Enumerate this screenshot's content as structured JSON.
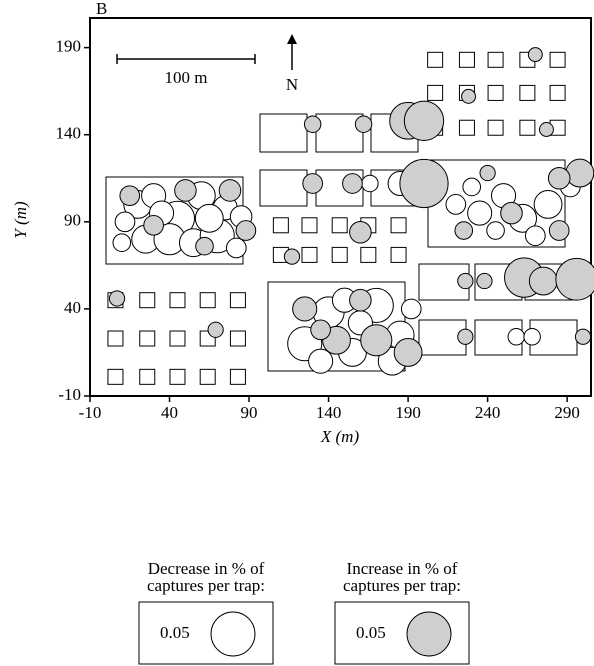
{
  "chart_data": {
    "type": "bubble",
    "panel_label": "B",
    "xlabel": "X (m)",
    "ylabel": "Y (m)",
    "scale_label": "100 m",
    "north_label": "N",
    "xlim": [
      -10,
      305
    ],
    "ylim": [
      -10,
      207
    ],
    "xticks": [
      -10,
      40,
      90,
      140,
      190,
      240,
      290
    ],
    "yticks": [
      -10,
      40,
      90,
      140,
      190
    ],
    "traps": {
      "x": [
        6,
        26,
        45,
        64,
        83,
        6,
        26,
        45,
        64,
        83,
        6,
        26,
        45,
        64,
        83,
        207,
        227,
        245,
        265,
        284,
        207,
        227,
        245,
        265,
        284,
        207,
        227,
        245,
        265,
        284,
        110,
        128,
        147,
        165,
        184,
        110,
        128,
        147,
        165,
        184
      ],
      "y": [
        45,
        45,
        45,
        45,
        45,
        23,
        23,
        23,
        23,
        23,
        1,
        1,
        1,
        1,
        1,
        183,
        183,
        183,
        183,
        183,
        164,
        164,
        164,
        164,
        164,
        144,
        144,
        144,
        144,
        144,
        88,
        88,
        88,
        88,
        88,
        71,
        71,
        71,
        71,
        71
      ]
    },
    "series": [
      {
        "name": "decrease",
        "color": "#ffffff",
        "x": [
          185,
          166,
          258,
          268,
          20,
          30,
          45,
          60,
          75,
          85,
          25,
          40,
          55,
          70,
          82,
          12,
          35,
          65,
          10,
          125,
          140,
          155,
          170,
          185,
          135,
          160,
          180,
          150,
          192,
          220,
          235,
          250,
          262,
          278,
          292,
          245,
          270,
          230
        ],
        "y": [
          112,
          112,
          24,
          24,
          100,
          105,
          92,
          105,
          98,
          93,
          80,
          80,
          78,
          82,
          75,
          90,
          95,
          92,
          78,
          20,
          38,
          15,
          42,
          25,
          10,
          32,
          10,
          45,
          40,
          100,
          95,
          105,
          92,
          100,
          110,
          85,
          82,
          110
        ],
        "size": [
          0.015,
          0.007,
          0.007,
          0.007,
          0.02,
          0.015,
          0.03,
          0.02,
          0.015,
          0.012,
          0.02,
          0.025,
          0.02,
          0.03,
          0.01,
          0.01,
          0.015,
          0.02,
          0.008,
          0.03,
          0.025,
          0.02,
          0.03,
          0.02,
          0.015,
          0.015,
          0.02,
          0.015,
          0.01,
          0.01,
          0.015,
          0.015,
          0.02,
          0.02,
          0.01,
          0.008,
          0.01,
          0.008
        ]
      },
      {
        "name": "increase",
        "color": "#cfcfcf",
        "x": [
          130,
          162,
          190,
          200,
          130,
          155,
          200,
          160,
          117,
          7,
          69,
          270,
          228,
          277,
          226,
          238,
          263,
          275,
          296,
          226,
          300,
          15,
          50,
          78,
          88,
          30,
          62,
          125,
          145,
          170,
          190,
          160,
          135,
          225,
          255,
          285,
          298,
          285,
          240
        ],
        "y": [
          146,
          146,
          148,
          148,
          112,
          112,
          112,
          84,
          70,
          46,
          28,
          186,
          162,
          143,
          56,
          56,
          58,
          56,
          57,
          24,
          24,
          105,
          108,
          108,
          85,
          88,
          76,
          40,
          22,
          22,
          15,
          45,
          28,
          85,
          95,
          85,
          118,
          115,
          118
        ],
        "size": [
          0.007,
          0.007,
          0.035,
          0.04,
          0.01,
          0.01,
          0.06,
          0.012,
          0.006,
          0.006,
          0.006,
          0.005,
          0.005,
          0.005,
          0.006,
          0.006,
          0.04,
          0.02,
          0.045,
          0.006,
          0.006,
          0.01,
          0.012,
          0.012,
          0.01,
          0.01,
          0.008,
          0.015,
          0.02,
          0.025,
          0.02,
          0.012,
          0.01,
          0.008,
          0.012,
          0.01,
          0.02,
          0.012,
          0.006
        ]
      }
    ],
    "legend": [
      {
        "title": [
          "Decrease in % of",
          "captures per trap:"
        ],
        "size": 0.05
      },
      {
        "title": [
          "Increase in % of",
          "captures per trap:"
        ],
        "size": 0.05
      }
    ]
  }
}
